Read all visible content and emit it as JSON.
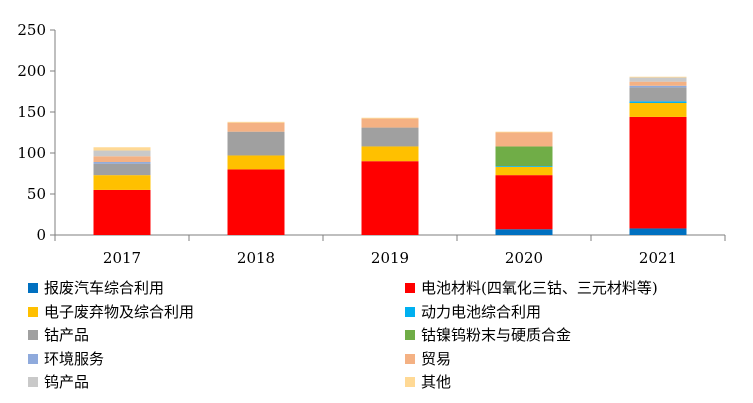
{
  "chart_data": {
    "type": "bar",
    "stacked": true,
    "categories": [
      "2017",
      "2018",
      "2019",
      "2020",
      "2021"
    ],
    "ylim": [
      0,
      250
    ],
    "yticks": [
      "0",
      "50",
      "100",
      "150",
      "200",
      "250"
    ],
    "grid": false,
    "legend_position": "bottom",
    "series": [
      {
        "name": "报废汽车综合利用",
        "color": "#0070C0",
        "values": [
          0,
          0,
          0,
          7,
          8
        ]
      },
      {
        "name": "电池材料(四氧化三钴、三元材料等)",
        "color": "#FF0000",
        "values": [
          55,
          80,
          90,
          66,
          136
        ]
      },
      {
        "name": "电子废弃物及综合利用",
        "color": "#FFC000",
        "values": [
          18,
          17,
          18,
          10,
          17
        ]
      },
      {
        "name": "动力电池综合利用",
        "color": "#00B0F0",
        "values": [
          0,
          0,
          0,
          1,
          2
        ]
      },
      {
        "name": "钴产品",
        "color": "#A0A0A0",
        "values": [
          14,
          29,
          23,
          0,
          17
        ]
      },
      {
        "name": "钴镍钨粉末与硬质合金",
        "color": "#70AD47",
        "values": [
          0,
          0,
          0,
          24,
          0
        ]
      },
      {
        "name": "环境服务",
        "color": "#8FAADC",
        "values": [
          2,
          0,
          0,
          0,
          2
        ]
      },
      {
        "name": "贸易",
        "color": "#F4B183",
        "values": [
          7,
          11,
          11,
          17,
          5
        ]
      },
      {
        "name": "钨产品",
        "color": "#C9C9C9",
        "values": [
          7,
          0,
          0,
          0,
          5
        ]
      },
      {
        "name": "其他",
        "color": "#FFD995",
        "values": [
          4,
          1,
          1,
          1,
          1
        ]
      }
    ]
  }
}
